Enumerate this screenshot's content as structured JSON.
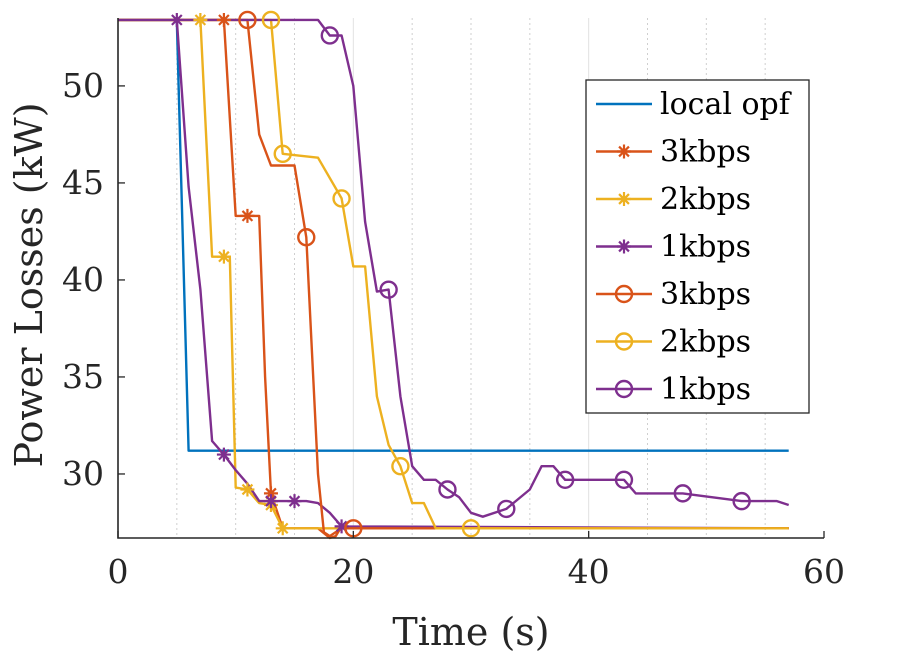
{
  "chart_data": {
    "type": "line",
    "title": "",
    "xlabel": "Time (s)",
    "ylabel": "Power Losses (kW)",
    "xlim": [
      0,
      60
    ],
    "ylim": [
      26.7,
      53.5
    ],
    "xticks": [
      0,
      20,
      40,
      60
    ],
    "yticks": [
      30,
      35,
      40,
      45,
      50
    ],
    "grid": "vertical dotted lines at 5 s intervals",
    "legend_position": "top-right",
    "series": [
      {
        "name": "local opf",
        "color": "#0072BD",
        "marker": "none",
        "x": [
          0,
          5,
          6,
          57
        ],
        "y": [
          53.4,
          53.4,
          31.2,
          31.2
        ]
      },
      {
        "name": "3kbps",
        "color": "#D95319",
        "marker": "star",
        "x": [
          0,
          9,
          10,
          10.5,
          11,
          12,
          12.5,
          13,
          14,
          17,
          18,
          18.5,
          19,
          20,
          57
        ],
        "y": [
          53.4,
          53.4,
          43.3,
          43.3,
          43.3,
          43.3,
          35,
          29.0,
          27.2,
          27.2,
          26.7,
          26.8,
          27.3,
          27.2,
          27.2
        ],
        "marker_x": [
          9,
          11,
          13
        ],
        "marker_y": [
          53.4,
          43.3,
          29.0
        ]
      },
      {
        "name": "2kbps",
        "color": "#EDB120",
        "marker": "star",
        "x": [
          0,
          7,
          8,
          9,
          9.5,
          10,
          11,
          12,
          13,
          14,
          57
        ],
        "y": [
          53.4,
          53.4,
          41.2,
          41.2,
          41.2,
          29.3,
          29.2,
          28.5,
          28.4,
          27.2,
          27.2
        ],
        "marker_x": [
          7,
          9,
          11,
          13,
          14
        ],
        "marker_y": [
          53.4,
          41.2,
          29.2,
          28.4,
          27.2
        ]
      },
      {
        "name": "1kbps",
        "color": "#7E2F8E",
        "marker": "star",
        "x": [
          0,
          5,
          6,
          7,
          8,
          9,
          10,
          11,
          12,
          15,
          16,
          17,
          18,
          19,
          57
        ],
        "y": [
          53.4,
          53.4,
          44.8,
          39.5,
          31.7,
          31.0,
          30.2,
          29.5,
          28.6,
          28.6,
          28.6,
          28.5,
          28.0,
          27.3,
          27.2
        ],
        "marker_x": [
          5,
          9,
          13,
          15,
          19
        ],
        "marker_y": [
          53.4,
          31.0,
          28.6,
          28.6,
          27.3
        ]
      },
      {
        "name": "3kbps",
        "color": "#D95319",
        "marker": "circle",
        "x": [
          0,
          11,
          12,
          13,
          15,
          16,
          17,
          17.5,
          18,
          19,
          20,
          30,
          57
        ],
        "y": [
          53.4,
          53.4,
          47.5,
          45.9,
          45.9,
          42.2,
          30.0,
          27.0,
          26.8,
          27.2,
          27.2,
          27.2,
          27.2
        ],
        "marker_x": [
          11,
          16,
          20
        ],
        "marker_y": [
          53.4,
          42.2,
          27.2
        ]
      },
      {
        "name": "2kbps",
        "color": "#EDB120",
        "marker": "circle",
        "x": [
          0,
          13,
          14,
          17,
          19,
          20,
          21,
          22,
          23,
          24,
          25,
          26,
          27,
          30,
          57
        ],
        "y": [
          53.4,
          53.4,
          46.5,
          46.3,
          44.2,
          40.7,
          40.7,
          34.0,
          31.5,
          30.4,
          28.5,
          28.5,
          27.2,
          27.2,
          27.2
        ],
        "marker_x": [
          13,
          14,
          19,
          24,
          30
        ],
        "marker_y": [
          53.4,
          46.5,
          44.2,
          30.4,
          27.2
        ]
      },
      {
        "name": "1kbps",
        "color": "#7E2F8E",
        "marker": "circle",
        "x": [
          0,
          17,
          18,
          19,
          20,
          21,
          22,
          23,
          24,
          25,
          26,
          27,
          28,
          29,
          30,
          31,
          33,
          35,
          36,
          37,
          38,
          41,
          43,
          44,
          45,
          48,
          53,
          56,
          57
        ],
        "y": [
          53.4,
          53.4,
          52.6,
          52.6,
          50,
          43,
          39.4,
          39.5,
          34,
          30.4,
          29.7,
          29.7,
          29.2,
          28.8,
          28,
          27.8,
          28.2,
          29.2,
          30.4,
          30.4,
          29.7,
          29.7,
          29.7,
          29.0,
          29.0,
          29.0,
          28.6,
          28.6,
          28.4
        ],
        "marker_x": [
          18,
          23,
          28,
          33,
          38,
          43,
          48,
          53
        ],
        "marker_y": [
          52.6,
          39.5,
          29.2,
          28.2,
          29.7,
          29.7,
          29.0,
          28.6
        ]
      }
    ]
  }
}
